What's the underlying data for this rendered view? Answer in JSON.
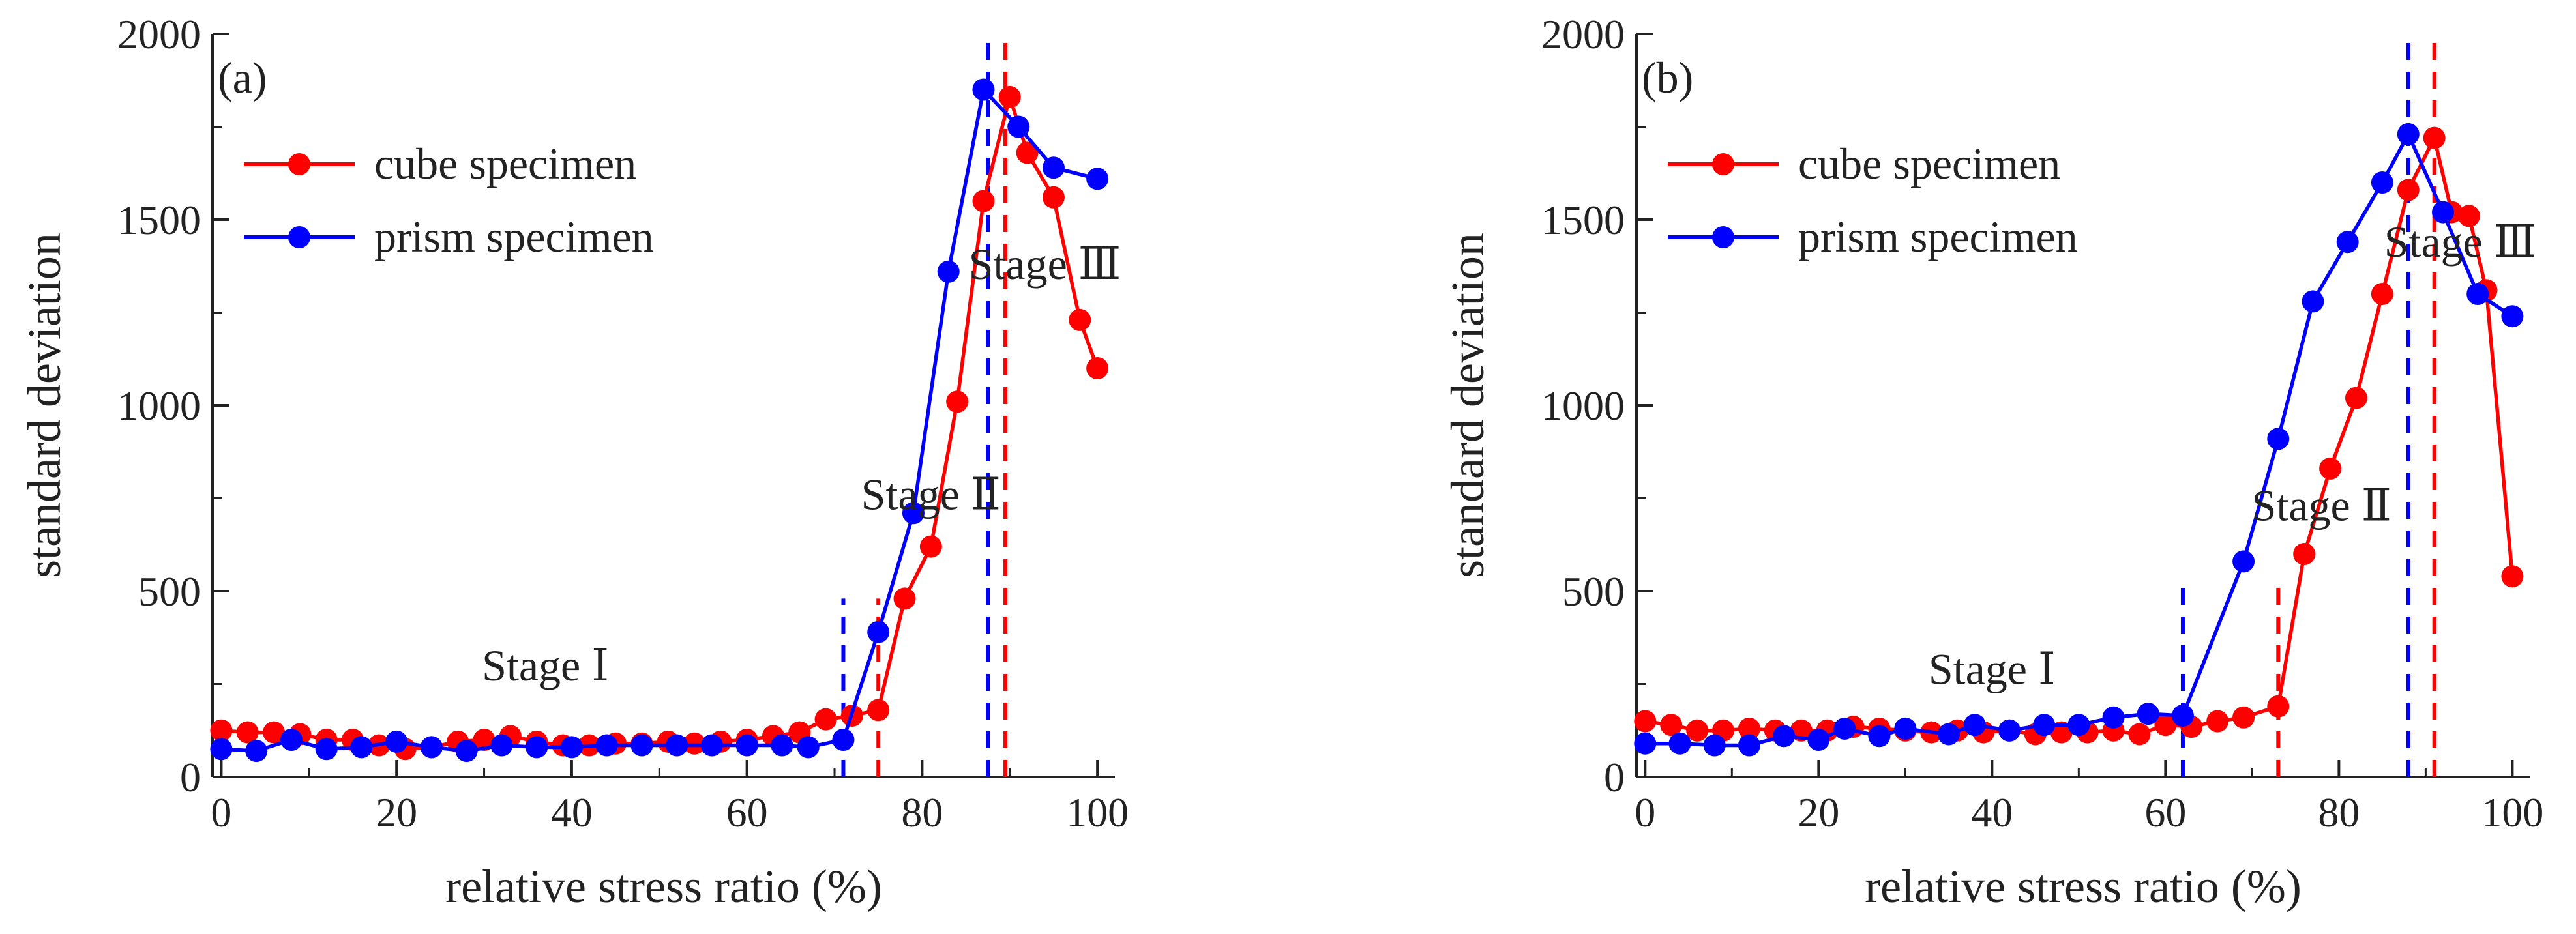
{
  "chart_data": [
    {
      "type": "line",
      "panel_label": "(a)",
      "xlabel": "relative stress ratio (%)",
      "ylabel": "standard deviation",
      "xlim": [
        -1,
        102
      ],
      "ylim": [
        0,
        2000
      ],
      "x_ticks": [
        "0",
        "20",
        "40",
        "60",
        "80",
        "100"
      ],
      "y_ticks": [
        "0",
        "500",
        "1000",
        "1500",
        "2000"
      ],
      "legend_position": "top-left",
      "series": [
        {
          "name": "cube specimen",
          "color": "#ff0000",
          "points": [
            [
              0,
              125
            ],
            [
              3,
              120
            ],
            [
              6,
              120
            ],
            [
              9,
              115
            ],
            [
              12,
              100
            ],
            [
              15,
              100
            ],
            [
              18,
              85
            ],
            [
              21,
              75
            ],
            [
              24,
              80
            ],
            [
              27,
              95
            ],
            [
              30,
              100
            ],
            [
              33,
              110
            ],
            [
              36,
              95
            ],
            [
              39,
              85
            ],
            [
              42,
              85
            ],
            [
              45,
              90
            ],
            [
              48,
              90
            ],
            [
              51,
              95
            ],
            [
              54,
              90
            ],
            [
              57,
              95
            ],
            [
              60,
              100
            ],
            [
              63,
              110
            ],
            [
              66,
              120
            ],
            [
              69,
              155
            ],
            [
              72,
              165
            ],
            [
              75,
              180
            ],
            [
              78,
              480
            ],
            [
              81,
              620
            ],
            [
              84,
              1010
            ],
            [
              87,
              1550
            ],
            [
              90,
              1830
            ],
            [
              92,
              1680
            ],
            [
              95,
              1560
            ],
            [
              98,
              1230
            ],
            [
              100,
              1100
            ]
          ]
        },
        {
          "name": "prism specimen",
          "color": "#0000ff",
          "points": [
            [
              0,
              75
            ],
            [
              4,
              70
            ],
            [
              8,
              100
            ],
            [
              12,
              75
            ],
            [
              16,
              80
            ],
            [
              20,
              95
            ],
            [
              24,
              80
            ],
            [
              28,
              70
            ],
            [
              32,
              85
            ],
            [
              36,
              80
            ],
            [
              40,
              80
            ],
            [
              44,
              85
            ],
            [
              48,
              85
            ],
            [
              52,
              85
            ],
            [
              56,
              85
            ],
            [
              60,
              85
            ],
            [
              64,
              85
            ],
            [
              67,
              80
            ],
            [
              71,
              100
            ],
            [
              75,
              390
            ],
            [
              79,
              710
            ],
            [
              83,
              1360
            ],
            [
              87,
              1850
            ],
            [
              91,
              1750
            ],
            [
              95,
              1640
            ],
            [
              100,
              1610
            ]
          ]
        }
      ],
      "vlines": [
        {
          "x": 71,
          "color": "#0000ff",
          "ymax": 480
        },
        {
          "x": 75,
          "color": "#ff0000",
          "ymax": 480
        },
        {
          "x": 87.5,
          "color": "#0000ff",
          "ymax": 2000
        },
        {
          "x": 89.5,
          "color": "#ff0000",
          "ymax": 2000
        }
      ],
      "annotations": [
        {
          "text": "Stage  Ⅰ",
          "x": 37,
          "y": 260
        },
        {
          "text": "Stage  Ⅱ",
          "x": 81,
          "y": 720
        },
        {
          "text": "Stage  Ⅲ",
          "x": 94,
          "y": 1340
        }
      ]
    },
    {
      "type": "line",
      "panel_label": "(b)",
      "xlabel": "relative stress ratio (%)",
      "ylabel": "standard deviation",
      "xlim": [
        -1,
        102
      ],
      "ylim": [
        0,
        2000
      ],
      "x_ticks": [
        "0",
        "20",
        "40",
        "60",
        "80",
        "100"
      ],
      "y_ticks": [
        "0",
        "500",
        "1000",
        "1500",
        "2000"
      ],
      "legend_position": "top-left",
      "series": [
        {
          "name": "cube specimen",
          "color": "#ff0000",
          "points": [
            [
              0,
              150
            ],
            [
              3,
              140
            ],
            [
              6,
              125
            ],
            [
              9,
              125
            ],
            [
              12,
              130
            ],
            [
              15,
              125
            ],
            [
              18,
              125
            ],
            [
              21,
              125
            ],
            [
              24,
              135
            ],
            [
              27,
              130
            ],
            [
              30,
              125
            ],
            [
              33,
              120
            ],
            [
              36,
              125
            ],
            [
              39,
              120
            ],
            [
              42,
              125
            ],
            [
              45,
              115
            ],
            [
              48,
              120
            ],
            [
              51,
              120
            ],
            [
              54,
              125
            ],
            [
              57,
              115
            ],
            [
              60,
              140
            ],
            [
              63,
              135
            ],
            [
              66,
              150
            ],
            [
              69,
              160
            ],
            [
              73,
              190
            ],
            [
              76,
              600
            ],
            [
              79,
              830
            ],
            [
              82,
              1020
            ],
            [
              85,
              1300
            ],
            [
              88,
              1580
            ],
            [
              91,
              1720
            ],
            [
              93,
              1520
            ],
            [
              95,
              1510
            ],
            [
              97,
              1310
            ],
            [
              100,
              540
            ]
          ]
        },
        {
          "name": "prism specimen",
          "color": "#0000ff",
          "points": [
            [
              0,
              90
            ],
            [
              4,
              90
            ],
            [
              8,
              85
            ],
            [
              12,
              85
            ],
            [
              16,
              110
            ],
            [
              20,
              100
            ],
            [
              23,
              130
            ],
            [
              27,
              110
            ],
            [
              30,
              130
            ],
            [
              35,
              115
            ],
            [
              38,
              140
            ],
            [
              42,
              125
            ],
            [
              46,
              140
            ],
            [
              50,
              140
            ],
            [
              54,
              160
            ],
            [
              58,
              170
            ],
            [
              62,
              165
            ],
            [
              69,
              580
            ],
            [
              73,
              910
            ],
            [
              77,
              1280
            ],
            [
              81,
              1440
            ],
            [
              85,
              1600
            ],
            [
              88,
              1730
            ],
            [
              92,
              1520
            ],
            [
              96,
              1300
            ],
            [
              100,
              1240
            ]
          ]
        }
      ],
      "vlines": [
        {
          "x": 62,
          "color": "#0000ff",
          "ymax": 520
        },
        {
          "x": 73,
          "color": "#ff0000",
          "ymax": 520
        },
        {
          "x": 88,
          "color": "#0000ff",
          "ymax": 2000
        },
        {
          "x": 91,
          "color": "#ff0000",
          "ymax": 2000
        }
      ],
      "annotations": [
        {
          "text": "Stage  Ⅰ",
          "x": 40,
          "y": 250
        },
        {
          "text": "Stage  Ⅱ",
          "x": 78,
          "y": 690
        },
        {
          "text": "Stage  Ⅲ",
          "x": 94,
          "y": 1400
        }
      ]
    }
  ]
}
